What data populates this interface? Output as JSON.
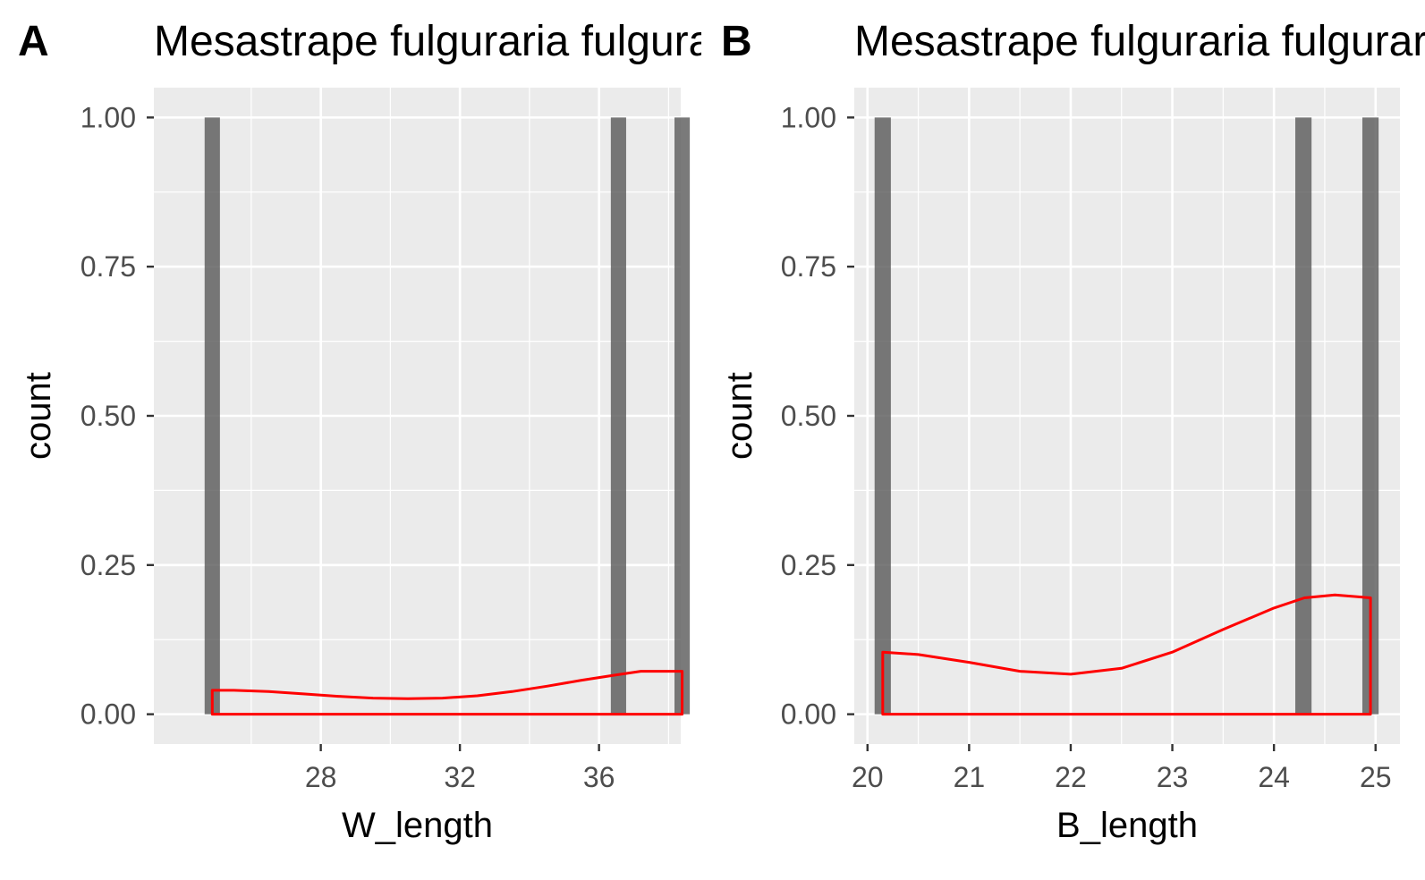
{
  "figure": {
    "panels": [
      {
        "tag": "A",
        "title": "Mesastrape fulguraria fulguraria"
      },
      {
        "tag": "B",
        "title": "Mesastrape fulguraria fulguraria"
      }
    ]
  },
  "chart_data": [
    {
      "type": "bar",
      "title": "Mesastrape fulguraria fulguraria",
      "xlabel": "W_length",
      "ylabel": "count",
      "xlim": [
        23.2,
        38.35
      ],
      "ylim": [
        -0.05,
        1.05
      ],
      "xticks": [
        28,
        32,
        36
      ],
      "yticks": [
        0,
        0.25,
        0.5,
        0.75,
        1
      ],
      "ytick_labels": [
        "0.00",
        "0.25",
        "0.50",
        "0.75",
        "1.00"
      ],
      "grid": true,
      "bar_width": 0.44,
      "bars": [
        {
          "x": 24.88,
          "count": 1
        },
        {
          "x": 36.56,
          "count": 1
        },
        {
          "x": 38.39,
          "count": 1
        }
      ],
      "density": {
        "color": "#ff0000",
        "x": [
          24.88,
          25.5,
          26.5,
          27.5,
          28.5,
          29.5,
          30.5,
          31.5,
          32.5,
          33.5,
          34.5,
          35.5,
          36.5,
          37.2,
          38.39
        ],
        "y": [
          0.04,
          0.04,
          0.038,
          0.034,
          0.03,
          0.027,
          0.026,
          0.027,
          0.031,
          0.038,
          0.047,
          0.057,
          0.066,
          0.072,
          0.072
        ]
      },
      "bar_color": "#595959",
      "panel_bg": "#ebebeb"
    },
    {
      "type": "bar",
      "title": "Mesastrape fulguraria fulguraria",
      "xlabel": "B_length",
      "ylabel": "count",
      "xlim": [
        19.87,
        25.24
      ],
      "ylim": [
        -0.05,
        1.05
      ],
      "xticks": [
        20,
        21,
        22,
        23,
        24,
        25
      ],
      "yticks": [
        0,
        0.25,
        0.5,
        0.75,
        1
      ],
      "ytick_labels": [
        "0.00",
        "0.25",
        "0.50",
        "0.75",
        "1.00"
      ],
      "grid": true,
      "bar_width": 0.16,
      "bars": [
        {
          "x": 20.15,
          "count": 1
        },
        {
          "x": 24.29,
          "count": 1
        },
        {
          "x": 24.95,
          "count": 1
        }
      ],
      "density": {
        "color": "#ff0000",
        "x": [
          20.15,
          20.5,
          21.0,
          21.5,
          22.0,
          22.5,
          23.0,
          23.5,
          24.0,
          24.3,
          24.6,
          24.95
        ],
        "y": [
          0.104,
          0.1,
          0.087,
          0.072,
          0.067,
          0.077,
          0.104,
          0.142,
          0.178,
          0.195,
          0.2,
          0.195
        ]
      },
      "bar_color": "#595959",
      "panel_bg": "#ebebeb"
    }
  ]
}
